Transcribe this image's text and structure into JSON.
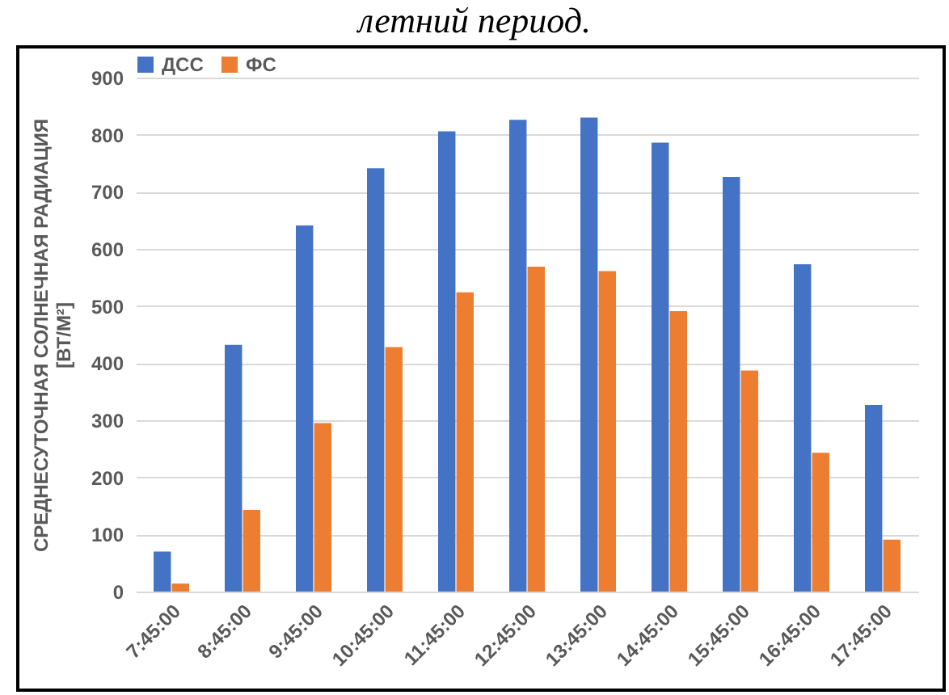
{
  "chart_data": {
    "type": "bar",
    "title": "летний период.",
    "ylabel": "СРЕДНЕСУТОЧНАЯ СОЛНЕЧНАЯ РАДИАЦИЯ [ВТ/М²]",
    "categories": [
      "7:45:00",
      "8:45:00",
      "9:45:00",
      "10:45:00",
      "11:45:00",
      "12:45:00",
      "13:45:00",
      "14:45:00",
      "15:45:00",
      "16:45:00",
      "17:45:00"
    ],
    "series": [
      {
        "name": "ДСС",
        "color": "#4472c4",
        "values": [
          70,
          432,
          641,
          741,
          806,
          826,
          830,
          786,
          726,
          573,
          327
        ]
      },
      {
        "name": "ФС",
        "color": "#ed7d31",
        "values": [
          14,
          143,
          295,
          428,
          524,
          569,
          561,
          491,
          387,
          243,
          91
        ]
      }
    ],
    "ylim": [
      0,
      900
    ],
    "yticks": [
      0,
      100,
      200,
      300,
      400,
      500,
      600,
      700,
      800,
      900
    ],
    "grid": "y",
    "legend": "top"
  }
}
